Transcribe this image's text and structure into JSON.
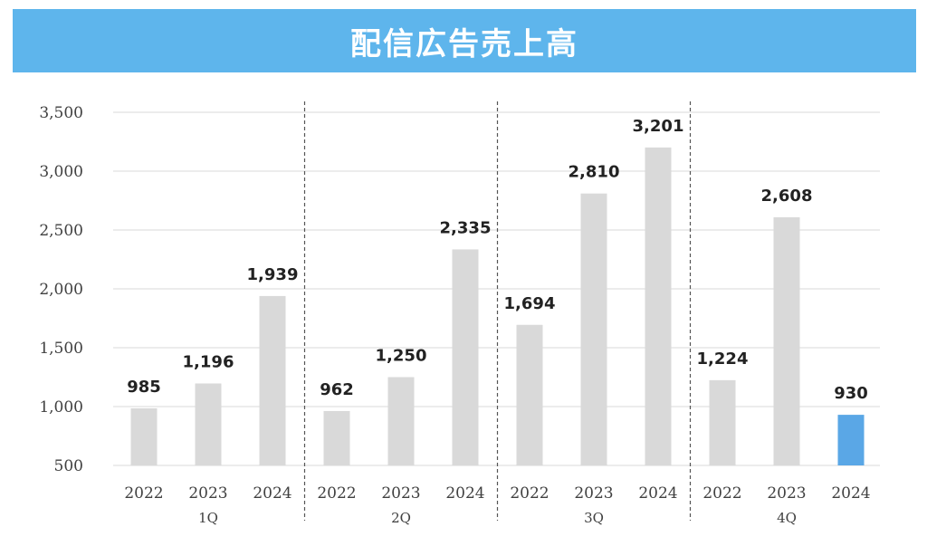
{
  "title": "配信広告売上高",
  "chart_data": {
    "type": "bar",
    "title": "配信広告売上高",
    "ylim": [
      500,
      3500
    ],
    "yticks": [
      500,
      1000,
      1500,
      2000,
      2500,
      3000,
      3500
    ],
    "ytick_labels": [
      "500",
      "1,000",
      "1,500",
      "2,000",
      "2,500",
      "3,000",
      "3,500"
    ],
    "grid": true,
    "groups": [
      {
        "label": "1Q",
        "bars": [
          {
            "year": "2022",
            "value": 985,
            "label": "985"
          },
          {
            "year": "2023",
            "value": 1196,
            "label": "1,196"
          },
          {
            "year": "2024",
            "value": 1939,
            "label": "1,939"
          }
        ]
      },
      {
        "label": "2Q",
        "bars": [
          {
            "year": "2022",
            "value": 962,
            "label": "962"
          },
          {
            "year": "2023",
            "value": 1250,
            "label": "1,250"
          },
          {
            "year": "2024",
            "value": 2335,
            "label": "2,335"
          }
        ]
      },
      {
        "label": "3Q",
        "bars": [
          {
            "year": "2022",
            "value": 1694,
            "label": "1,694"
          },
          {
            "year": "2023",
            "value": 2810,
            "label": "2,810"
          },
          {
            "year": "2024",
            "value": 3201,
            "label": "3,201"
          }
        ]
      },
      {
        "label": "4Q",
        "bars": [
          {
            "year": "2022",
            "value": 1224,
            "label": "1,224"
          },
          {
            "year": "2023",
            "value": 2608,
            "label": "2,608"
          },
          {
            "year": "2024",
            "value": 930,
            "label": "930",
            "highlight": true
          }
        ]
      }
    ],
    "colors": {
      "bar": "#d9d9d9",
      "highlight": "#5aa7e6",
      "grid": "#d9d9d9",
      "divider": "#555555"
    }
  }
}
